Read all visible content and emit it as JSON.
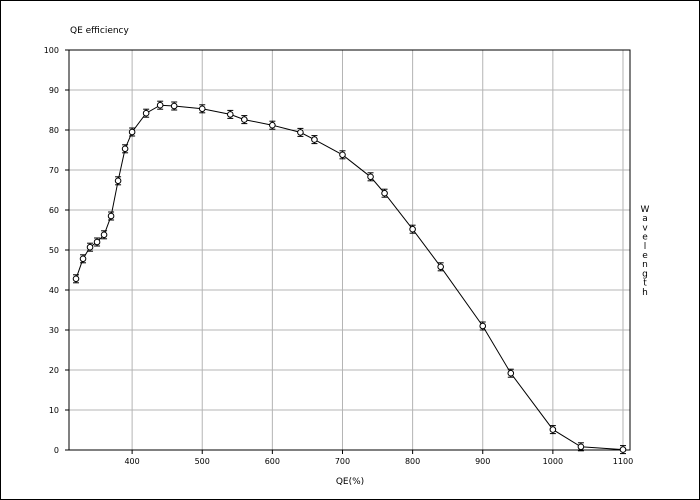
{
  "chart_data": {
    "type": "line",
    "title": "QE efficiency",
    "xlabel": "QE(%)",
    "ylabel": "Wavelength",
    "xlim": [
      310,
      1110
    ],
    "ylim": [
      0,
      100
    ],
    "x_ticks": [
      400,
      500,
      600,
      700,
      800,
      900,
      1000,
      1100
    ],
    "y_ticks": [
      0,
      10,
      20,
      30,
      40,
      50,
      60,
      70,
      80,
      90,
      100
    ],
    "grid": true,
    "series": [
      {
        "marker": "circle-with-errorbar",
        "points": [
          [
            320,
            42.8
          ],
          [
            330,
            47.8
          ],
          [
            340,
            50.7
          ],
          [
            350,
            52
          ],
          [
            360,
            53.8
          ],
          [
            370,
            58.5
          ],
          [
            380,
            67.3
          ],
          [
            390,
            75.3
          ],
          [
            400,
            79.5
          ],
          [
            420,
            84.2
          ],
          [
            440,
            86.2
          ],
          [
            460,
            86
          ],
          [
            500,
            85.3
          ],
          [
            540,
            83.9
          ],
          [
            560,
            82.6
          ],
          [
            600,
            81.2
          ],
          [
            640,
            79.4
          ],
          [
            660,
            77.6
          ],
          [
            700,
            73.8
          ],
          [
            740,
            68.3
          ],
          [
            760,
            64.2
          ],
          [
            800,
            55.2
          ],
          [
            840,
            45.8
          ],
          [
            900,
            31
          ],
          [
            940,
            19.2
          ],
          [
            1000,
            5.1
          ],
          [
            1040,
            0.8
          ],
          [
            1100,
            0.1
          ]
        ]
      }
    ]
  }
}
